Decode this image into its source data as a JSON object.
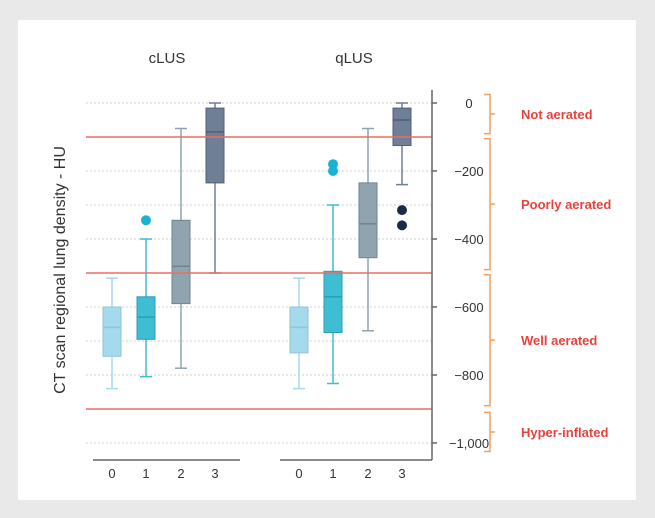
{
  "chart_data": {
    "type": "box",
    "ylabel": "CT scan regional lung density - HU",
    "ylim": [
      -1050,
      25
    ],
    "y_ticks": [
      0,
      -200,
      -400,
      -600,
      -800,
      -1000
    ],
    "y_tick_labels": [
      "0",
      "−200",
      "−400",
      "−600",
      "−800",
      "−1,000"
    ],
    "categories": [
      "0",
      "1",
      "2",
      "3"
    ],
    "thresholds": [
      -100,
      -500,
      -900
    ],
    "zones": [
      {
        "label": "Not aerated",
        "from": 25,
        "to": -90
      },
      {
        "label": "Poorly aerated",
        "from": -105,
        "to": -490
      },
      {
        "label": "Well aerated",
        "from": -505,
        "to": -890
      },
      {
        "label": "Hyper-inflated",
        "from": -910,
        "to": -1025
      }
    ],
    "colors": {
      "threshold": "#ea6e64",
      "zone_text": "#e8423d",
      "cat0": "#a5d9ec",
      "cat1": "#3fbdd3",
      "cat2": "#8fa4af",
      "cat3": "#6f7f96",
      "outlier1": "#17b3d0",
      "outlier3": "#1b2b44"
    },
    "panels": [
      {
        "title": "cLUS",
        "boxes": [
          {
            "cat": "0",
            "whislo": -840,
            "q1": -745,
            "med": -660,
            "q3": -600,
            "whishi": -515,
            "fliers": []
          },
          {
            "cat": "1",
            "whislo": -805,
            "q1": -695,
            "med": -630,
            "q3": -570,
            "whishi": -400,
            "fliers": [
              -345
            ]
          },
          {
            "cat": "2",
            "whislo": -780,
            "q1": -590,
            "med": -480,
            "q3": -345,
            "whishi": -75,
            "fliers": []
          },
          {
            "cat": "3",
            "whislo": -500,
            "q1": -235,
            "med": -85,
            "q3": -15,
            "whishi": 0,
            "fliers": []
          }
        ]
      },
      {
        "title": "qLUS",
        "boxes": [
          {
            "cat": "0",
            "whislo": -840,
            "q1": -735,
            "med": -660,
            "q3": -600,
            "whishi": -515,
            "fliers": []
          },
          {
            "cat": "1",
            "whislo": -825,
            "q1": -675,
            "med": -570,
            "q3": -495,
            "whishi": -300,
            "fliers": [
              -180,
              -200
            ]
          },
          {
            "cat": "2",
            "whislo": -670,
            "q1": -455,
            "med": -355,
            "q3": -235,
            "whishi": -75,
            "fliers": []
          },
          {
            "cat": "3",
            "whislo": -240,
            "q1": -125,
            "med": -50,
            "q3": -15,
            "whishi": 0,
            "fliers": [
              -315,
              -360
            ]
          }
        ]
      }
    ]
  }
}
